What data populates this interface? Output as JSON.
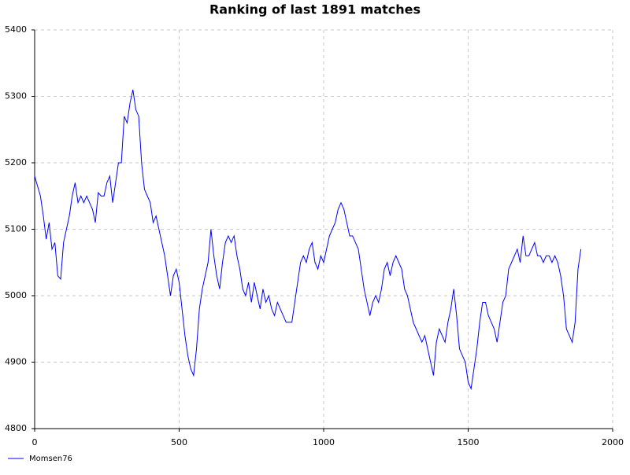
{
  "chart_data": {
    "type": "line",
    "title": "Ranking of last 1891 matches",
    "x": [
      0,
      10,
      20,
      30,
      40,
      50,
      60,
      70,
      80,
      90,
      100,
      110,
      120,
      130,
      140,
      150,
      160,
      170,
      180,
      190,
      200,
      210,
      220,
      230,
      240,
      250,
      260,
      270,
      280,
      290,
      300,
      310,
      320,
      330,
      340,
      350,
      360,
      370,
      380,
      390,
      400,
      410,
      420,
      430,
      440,
      450,
      460,
      470,
      480,
      490,
      500,
      510,
      520,
      530,
      540,
      550,
      560,
      570,
      580,
      590,
      600,
      610,
      620,
      630,
      640,
      650,
      660,
      670,
      680,
      690,
      700,
      710,
      720,
      730,
      740,
      750,
      760,
      770,
      780,
      790,
      800,
      810,
      820,
      830,
      840,
      850,
      860,
      870,
      880,
      890,
      900,
      910,
      920,
      930,
      940,
      950,
      960,
      970,
      980,
      990,
      1000,
      1010,
      1020,
      1030,
      1040,
      1050,
      1060,
      1070,
      1080,
      1090,
      1100,
      1110,
      1120,
      1130,
      1140,
      1150,
      1160,
      1170,
      1180,
      1190,
      1200,
      1210,
      1220,
      1230,
      1240,
      1250,
      1260,
      1270,
      1280,
      1290,
      1300,
      1310,
      1320,
      1330,
      1340,
      1350,
      1360,
      1370,
      1380,
      1390,
      1400,
      1410,
      1420,
      1430,
      1440,
      1450,
      1460,
      1470,
      1480,
      1490,
      1500,
      1510,
      1520,
      1530,
      1540,
      1550,
      1560,
      1570,
      1580,
      1590,
      1600,
      1610,
      1620,
      1630,
      1640,
      1650,
      1660,
      1670,
      1680,
      1690,
      1700,
      1710,
      1720,
      1730,
      1740,
      1750,
      1760,
      1770,
      1780,
      1790,
      1800,
      1810,
      1820,
      1830,
      1840,
      1850,
      1860,
      1870,
      1880,
      1890
    ],
    "series": [
      {
        "name": "Momsen76",
        "color": "#0000ff",
        "values": [
          5180,
          5165,
          5150,
          5120,
          5085,
          5110,
          5070,
          5080,
          5030,
          5025,
          5080,
          5100,
          5120,
          5150,
          5170,
          5140,
          5150,
          5140,
          5150,
          5140,
          5130,
          5110,
          5155,
          5150,
          5150,
          5170,
          5180,
          5140,
          5170,
          5200,
          5200,
          5270,
          5260,
          5290,
          5310,
          5280,
          5270,
          5200,
          5160,
          5150,
          5140,
          5110,
          5120,
          5100,
          5080,
          5060,
          5030,
          5000,
          5030,
          5040,
          5020,
          4980,
          4940,
          4910,
          4890,
          4880,
          4920,
          4980,
          5010,
          5030,
          5050,
          5100,
          5060,
          5030,
          5010,
          5050,
          5080,
          5090,
          5080,
          5090,
          5060,
          5040,
          5010,
          5000,
          5020,
          4990,
          5020,
          5000,
          4980,
          5010,
          4990,
          5000,
          4980,
          4970,
          4990,
          4980,
          4970,
          4960,
          4960,
          4960,
          4990,
          5020,
          5050,
          5060,
          5050,
          5070,
          5080,
          5050,
          5040,
          5060,
          5050,
          5070,
          5090,
          5100,
          5110,
          5130,
          5140,
          5130,
          5110,
          5090,
          5090,
          5080,
          5070,
          5040,
          5010,
          4990,
          4970,
          4990,
          5000,
          4990,
          5010,
          5040,
          5050,
          5030,
          5050,
          5060,
          5050,
          5040,
          5010,
          5000,
          4980,
          4960,
          4950,
          4940,
          4930,
          4940,
          4920,
          4900,
          4880,
          4930,
          4950,
          4940,
          4930,
          4960,
          4980,
          5010,
          4970,
          4920,
          4910,
          4900,
          4870,
          4860,
          4890,
          4920,
          4960,
          4990,
          4990,
          4970,
          4960,
          4950,
          4930,
          4960,
          4990,
          5000,
          5040,
          5050,
          5060,
          5070,
          5050,
          5090,
          5060,
          5060,
          5070,
          5080,
          5060,
          5060,
          5050,
          5060,
          5060,
          5050,
          5060,
          5050,
          5030,
          5000,
          4950,
          4940,
          4930,
          4960,
          5040,
          5070
        ]
      }
    ],
    "xlim": [
      0,
      2000
    ],
    "xticks": [
      0,
      500,
      1000,
      1500,
      2000
    ],
    "ylim": [
      4800,
      5400
    ],
    "yticks": [
      4800,
      4900,
      5000,
      5100,
      5200,
      5300,
      5400
    ],
    "grid": true,
    "legend": "bottom-left"
  }
}
